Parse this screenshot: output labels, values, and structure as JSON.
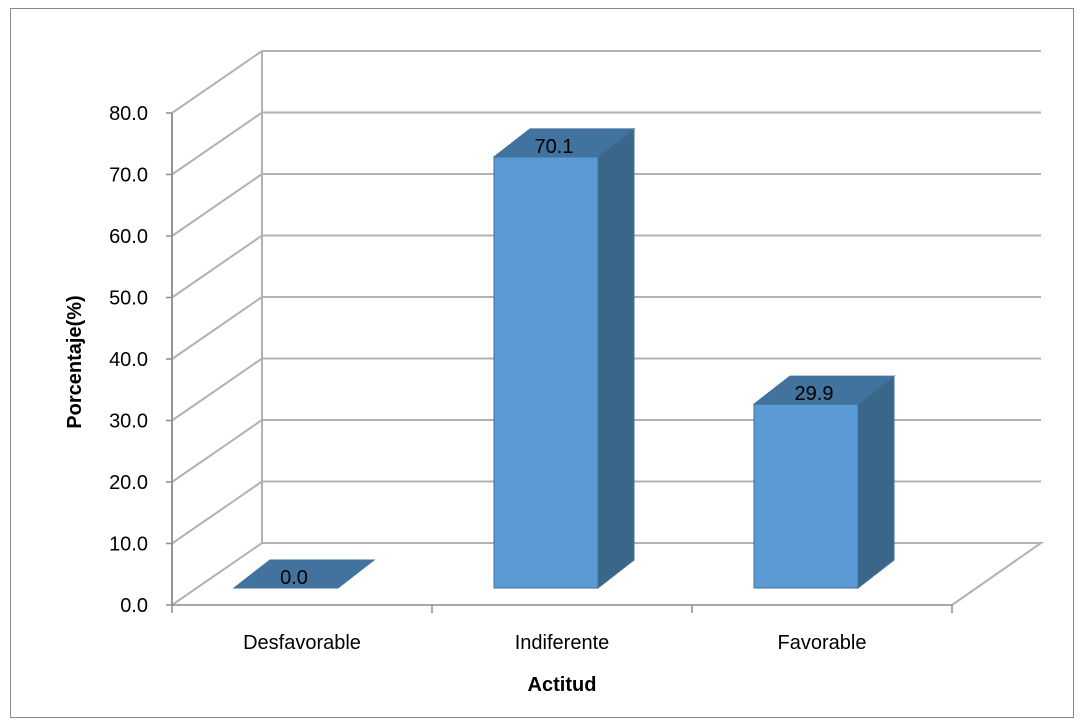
{
  "chart_data": {
    "type": "bar",
    "style": "3d-column",
    "categories": [
      "Desfavorable",
      "Indiferente",
      "Favorable"
    ],
    "values": [
      0.0,
      70.1,
      29.9
    ],
    "data_labels": [
      "0.0",
      "70.1",
      "29.9"
    ],
    "title": "",
    "xlabel": "Actitud",
    "ylabel": "Porcentaje(%)",
    "ylim": [
      0,
      80
    ],
    "ytick_labels": [
      "0.0",
      "10.0",
      "20.0",
      "30.0",
      "40.0",
      "50.0",
      "60.0",
      "70.0",
      "80.0"
    ],
    "grid": true,
    "legend": "none",
    "colors": {
      "bar_front": "#5b9bd5",
      "bar_side": "#3a6689",
      "bar_top": "#42729e",
      "bar_outline": "#41719c",
      "grid": "#b2b2b2"
    }
  }
}
